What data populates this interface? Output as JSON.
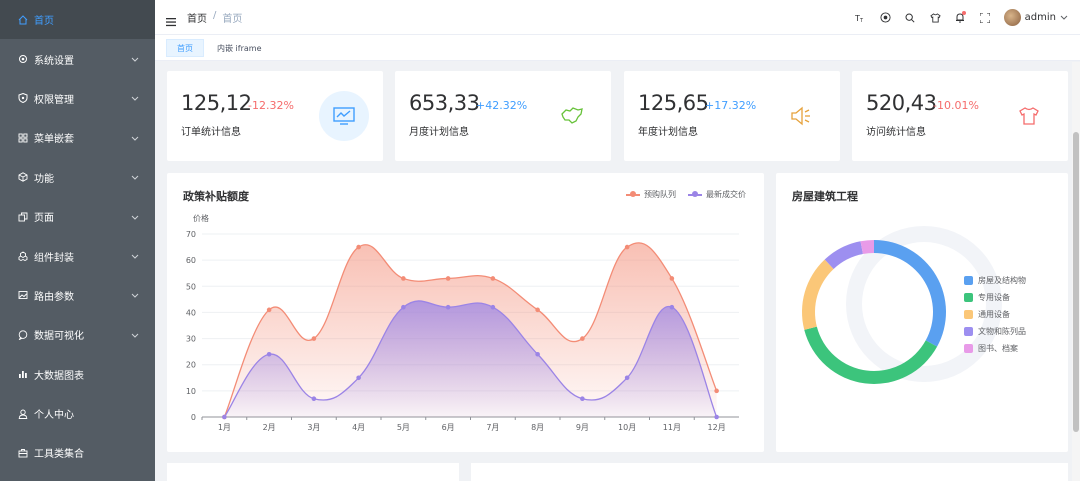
{
  "sidebar": {
    "items": [
      {
        "label": "首页",
        "icon": "home-icon",
        "active": true
      },
      {
        "label": "系统设置",
        "icon": "gear-icon"
      },
      {
        "label": "权限管理",
        "icon": "shield-icon"
      },
      {
        "label": "菜单嵌套",
        "icon": "grid-icon"
      },
      {
        "label": "功能",
        "icon": "cube-icon"
      },
      {
        "label": "页面",
        "icon": "copy-icon"
      },
      {
        "label": "组件封装",
        "icon": "cubes-icon"
      },
      {
        "label": "路由参数",
        "icon": "image-icon"
      },
      {
        "label": "数据可视化",
        "icon": "chat-icon"
      },
      {
        "label": "大数据图表",
        "icon": "bar-chart-icon"
      },
      {
        "label": "个人中心",
        "icon": "user-icon"
      },
      {
        "label": "工具类集合",
        "icon": "toolbox-icon"
      }
    ]
  },
  "header": {
    "crumb_root": "首页",
    "crumb_sep": "/",
    "crumb_current": "首页",
    "username": "admin"
  },
  "tags": {
    "tag1": "首页",
    "tag2": "内嵌 iframe"
  },
  "stats": [
    {
      "value": "125,12",
      "percent": "-12.32%",
      "label": "订单统计信息",
      "icon": "monitor-chart-icon",
      "color": "#409eff",
      "pct_color": "#f56c6c"
    },
    {
      "value": "653,33",
      "percent": "+42.32%",
      "label": "月度计划信息",
      "icon": "map-icon",
      "color": "#67c23a",
      "pct_color": "#409eff"
    },
    {
      "value": "125,65",
      "percent": "+17.32%",
      "label": "年度计划信息",
      "icon": "speaker-icon",
      "color": "#e6a23c",
      "pct_color": "#409eff"
    },
    {
      "value": "520,43",
      "percent": "-10.01%",
      "label": "访问统计信息",
      "icon": "shirt-icon",
      "color": "#f56c6c",
      "pct_color": "#f56c6c"
    }
  ],
  "chart_data": [
    {
      "type": "area",
      "title": "政策补贴额度",
      "ylabel": "价格",
      "categories": [
        "1月",
        "2月",
        "3月",
        "4月",
        "5月",
        "6月",
        "7月",
        "8月",
        "9月",
        "10月",
        "11月",
        "12月"
      ],
      "ylim": [
        0,
        70
      ],
      "yticks": [
        0,
        10,
        20,
        30,
        40,
        50,
        60,
        70
      ],
      "legend_position": "top-right",
      "series": [
        {
          "name": "预购队列",
          "color": "#f38c76",
          "values": [
            0,
            41,
            30,
            65,
            53,
            53,
            53,
            41,
            30,
            65,
            53,
            10
          ]
        },
        {
          "name": "最新成交价",
          "color": "#9b84e6",
          "values": [
            0,
            24,
            7,
            15,
            42,
            42,
            42,
            24,
            7,
            15,
            42,
            0
          ]
        }
      ]
    },
    {
      "type": "pie",
      "title": "房屋建筑工程",
      "legend_position": "right",
      "categories": [
        "房屋及结构物",
        "专用设备",
        "通用设备",
        "文物和陈列品",
        "图书、档案"
      ],
      "values": [
        33,
        38,
        17,
        9,
        3
      ],
      "colors": [
        "#5aa0f0",
        "#3cc47c",
        "#fbc778",
        "#9d8ff0",
        "#e89be8"
      ]
    }
  ]
}
